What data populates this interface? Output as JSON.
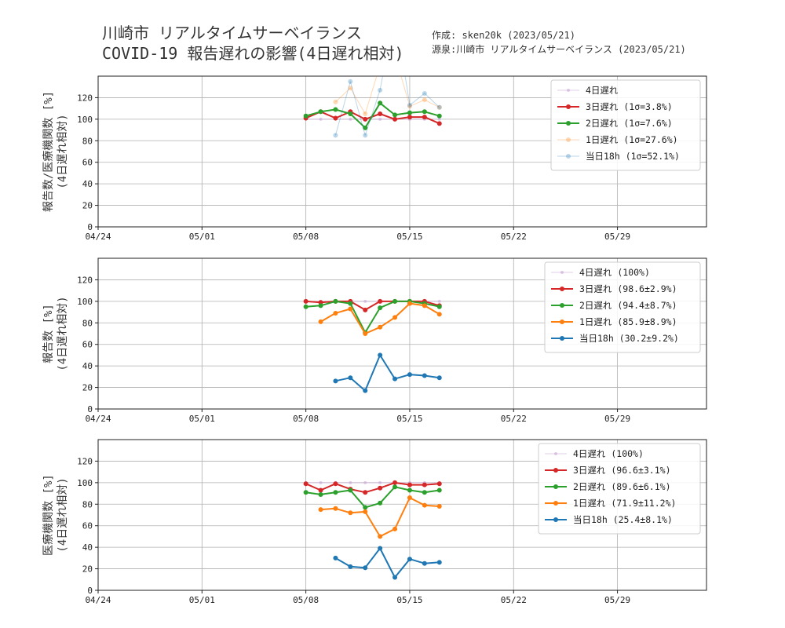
{
  "header": {
    "title_line1": "川崎市 リアルタイムサーベイランス",
    "title_line2": "COVID-19 報告遅れの影響(4日遅れ相対)",
    "credit_line1": "作成: sken20k (2023/05/21)",
    "credit_line2": "源泉:川崎市 リアルタイムサーベイランス (2023/05/21)"
  },
  "chart_data": [
    {
      "type": "line",
      "ylabel_line1": "報告数/医療機関数 [%]",
      "ylabel_line2": "(4日遅れ相対)",
      "xlim": [
        "2023-04-24",
        "2023-06-04"
      ],
      "ylim": [
        0,
        140
      ],
      "yticks": [
        0,
        20,
        40,
        60,
        80,
        100,
        120
      ],
      "xtick_labels": [
        "04/24",
        "05/01",
        "05/08",
        "05/15",
        "05/22",
        "05/29"
      ],
      "grid": true,
      "legend_position": "top-right",
      "series": [
        {
          "name": "4日遅れ",
          "color": "#c39bd3",
          "alpha": 0.5,
          "width": 1,
          "marker": 2,
          "x": [
            "05/08",
            "05/09",
            "05/10",
            "05/11",
            "05/12",
            "05/13",
            "05/14",
            "05/15",
            "05/16",
            "05/17"
          ],
          "y": [
            100,
            100,
            100,
            100,
            100,
            100,
            100,
            100,
            100,
            100
          ]
        },
        {
          "name": "3日遅れ (1σ=3.8%)",
          "color": "#d62728",
          "alpha": 1,
          "width": 2,
          "marker": 3,
          "x": [
            "05/08",
            "05/09",
            "05/10",
            "05/11",
            "05/12",
            "05/13",
            "05/14",
            "05/15",
            "05/16",
            "05/17"
          ],
          "y": [
            101,
            107,
            101,
            107,
            100,
            105,
            100,
            102,
            102,
            96
          ]
        },
        {
          "name": "2日遅れ (1σ=7.6%)",
          "color": "#2ca02c",
          "alpha": 1,
          "width": 2,
          "marker": 3,
          "x": [
            "05/08",
            "05/09",
            "05/10",
            "05/11",
            "05/12",
            "05/13",
            "05/14",
            "05/15",
            "05/16",
            "05/17"
          ],
          "y": [
            103,
            107,
            109,
            105,
            92,
            115,
            104,
            106,
            107,
            103
          ]
        },
        {
          "name": "1日遅れ (1σ=27.6%)",
          "color": "#ff7f0e",
          "alpha": 0.3,
          "width": 1,
          "marker": 3,
          "x": [
            "05/10",
            "05/11",
            "05/12",
            "05/13",
            "05/14",
            "05/15",
            "05/16",
            "05/17"
          ],
          "y": [
            116,
            129,
            105,
            150,
            160,
            112,
            118,
            111
          ]
        },
        {
          "name": "当日18h (1σ=52.1%)",
          "color": "#1f77b4",
          "alpha": 0.3,
          "width": 1,
          "marker": 3,
          "x": [
            "05/10",
            "05/11",
            "05/12",
            "05/13",
            "05/14",
            "05/15",
            "05/16",
            "05/17"
          ],
          "y": [
            85,
            135,
            85,
            127,
            200,
            113,
            124,
            111
          ]
        }
      ]
    },
    {
      "type": "line",
      "ylabel_line1": "報告数 [%]",
      "ylabel_line2": "(4日遅れ相対)",
      "xlim": [
        "2023-04-24",
        "2023-06-04"
      ],
      "ylim": [
        0,
        140
      ],
      "yticks": [
        0,
        20,
        40,
        60,
        80,
        100,
        120
      ],
      "xtick_labels": [
        "04/24",
        "05/01",
        "05/08",
        "05/15",
        "05/22",
        "05/29"
      ],
      "grid": true,
      "legend_position": "top-right",
      "series": [
        {
          "name": "4日遅れ (100%)",
          "color": "#c39bd3",
          "alpha": 0.5,
          "width": 1,
          "marker": 2,
          "x": [
            "05/08",
            "05/09",
            "05/10",
            "05/11",
            "05/12",
            "05/13",
            "05/14",
            "05/15",
            "05/16",
            "05/17"
          ],
          "y": [
            100,
            100,
            100,
            100,
            100,
            100,
            100,
            100,
            100,
            100
          ]
        },
        {
          "name": "3日遅れ (98.6±2.9%)",
          "color": "#d62728",
          "alpha": 1,
          "width": 2,
          "marker": 3,
          "x": [
            "05/08",
            "05/09",
            "05/10",
            "05/11",
            "05/12",
            "05/13",
            "05/14",
            "05/15",
            "05/16",
            "05/17"
          ],
          "y": [
            100,
            99,
            100,
            100,
            92,
            100,
            100,
            100,
            100,
            96
          ]
        },
        {
          "name": "2日遅れ (94.4±8.7%)",
          "color": "#2ca02c",
          "alpha": 1,
          "width": 2,
          "marker": 3,
          "x": [
            "05/08",
            "05/09",
            "05/10",
            "05/11",
            "05/12",
            "05/13",
            "05/14",
            "05/15",
            "05/16",
            "05/17"
          ],
          "y": [
            95,
            96,
            100,
            98,
            71,
            94,
            100,
            100,
            98,
            95
          ]
        },
        {
          "name": "1日遅れ (85.9±8.9%)",
          "color": "#ff7f0e",
          "alpha": 1,
          "width": 2,
          "marker": 3,
          "x": [
            "05/09",
            "05/10",
            "05/11",
            "05/12",
            "05/13",
            "05/14",
            "05/15",
            "05/16",
            "05/17"
          ],
          "y": [
            81,
            89,
            93,
            70,
            76,
            85,
            98,
            96,
            88
          ]
        },
        {
          "name": "当日18h (30.2±9.2%)",
          "color": "#1f77b4",
          "alpha": 1,
          "width": 2,
          "marker": 3,
          "x": [
            "05/10",
            "05/11",
            "05/12",
            "05/13",
            "05/14",
            "05/15",
            "05/16",
            "05/17"
          ],
          "y": [
            26,
            29,
            17,
            50,
            28,
            32,
            31,
            29
          ]
        }
      ]
    },
    {
      "type": "line",
      "ylabel_line1": "医療機関数 [%]",
      "ylabel_line2": "(4日遅れ相対)",
      "xlim": [
        "2023-04-24",
        "2023-06-04"
      ],
      "ylim": [
        0,
        140
      ],
      "yticks": [
        0,
        20,
        40,
        60,
        80,
        100,
        120
      ],
      "xtick_labels": [
        "04/24",
        "05/01",
        "05/08",
        "05/15",
        "05/22",
        "05/29"
      ],
      "grid": true,
      "legend_position": "top-right",
      "series": [
        {
          "name": "4日遅れ (100%)",
          "color": "#c39bd3",
          "alpha": 0.5,
          "width": 1,
          "marker": 2,
          "x": [
            "05/08",
            "05/09",
            "05/10",
            "05/11",
            "05/12",
            "05/13",
            "05/14",
            "05/15",
            "05/16",
            "05/17"
          ],
          "y": [
            100,
            100,
            100,
            100,
            100,
            100,
            100,
            100,
            100,
            100
          ]
        },
        {
          "name": "3日遅れ (96.6±3.1%)",
          "color": "#d62728",
          "alpha": 1,
          "width": 2,
          "marker": 3,
          "x": [
            "05/08",
            "05/09",
            "05/10",
            "05/11",
            "05/12",
            "05/13",
            "05/14",
            "05/15",
            "05/16",
            "05/17"
          ],
          "y": [
            99,
            93,
            99,
            94,
            91,
            95,
            100,
            98,
            98,
            99
          ]
        },
        {
          "name": "2日遅れ (89.6±6.1%)",
          "color": "#2ca02c",
          "alpha": 1,
          "width": 2,
          "marker": 3,
          "x": [
            "05/08",
            "05/09",
            "05/10",
            "05/11",
            "05/12",
            "05/13",
            "05/14",
            "05/15",
            "05/16",
            "05/17"
          ],
          "y": [
            91,
            89,
            91,
            93,
            77,
            81,
            96,
            93,
            91,
            93
          ]
        },
        {
          "name": "1日遅れ (71.9±11.2%)",
          "color": "#ff7f0e",
          "alpha": 1,
          "width": 2,
          "marker": 3,
          "x": [
            "05/09",
            "05/10",
            "05/11",
            "05/12",
            "05/13",
            "05/14",
            "05/15",
            "05/16",
            "05/17"
          ],
          "y": [
            75,
            76,
            72,
            73,
            50,
            57,
            86,
            79,
            78
          ]
        },
        {
          "name": "当日18h (25.4±8.1%)",
          "color": "#1f77b4",
          "alpha": 1,
          "width": 2,
          "marker": 3,
          "x": [
            "05/10",
            "05/11",
            "05/12",
            "05/13",
            "05/14",
            "05/15",
            "05/16",
            "05/17"
          ],
          "y": [
            30,
            22,
            21,
            39,
            12,
            29,
            25,
            26
          ]
        }
      ]
    }
  ]
}
